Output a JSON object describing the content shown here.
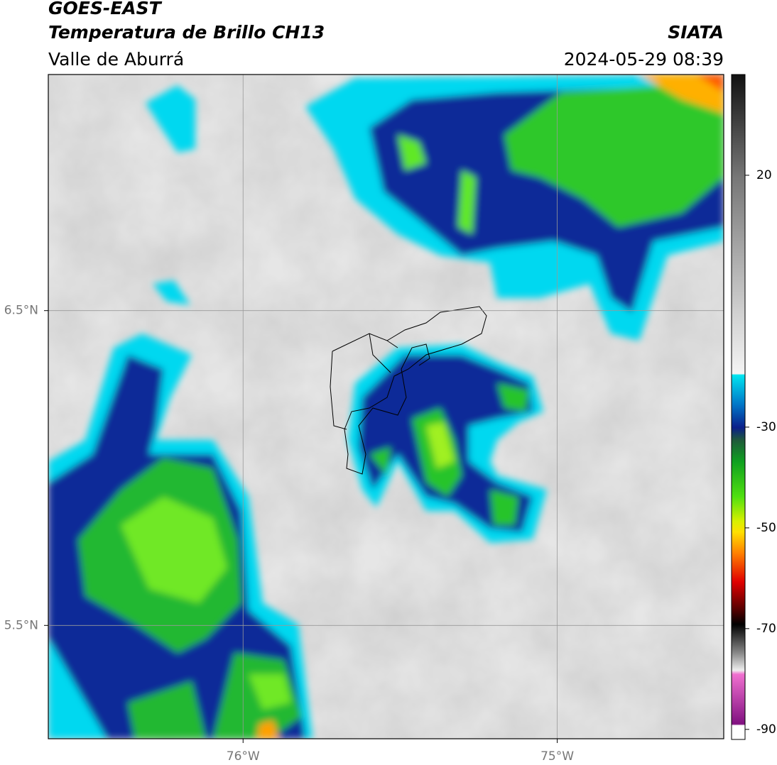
{
  "header": {
    "title": "GOES-EAST",
    "subtitle": "Temperatura de Brillo CH13",
    "region": "Valle de Aburrá",
    "source": "SIATA",
    "timestamp": "2024-05-29 08:39"
  },
  "map": {
    "xlim": [
      -76.62,
      -74.47
    ],
    "ylim": [
      5.14,
      7.25
    ],
    "xticks": [
      {
        "value": -76,
        "label": "76°W"
      },
      {
        "value": -75,
        "label": "75°W"
      }
    ],
    "yticks": [
      {
        "value": 6.5,
        "label": "6.5°N"
      },
      {
        "value": 5.5,
        "label": "5.5°N"
      }
    ],
    "grid": true
  },
  "colorbar": {
    "lim": [
      -92,
      40
    ],
    "ticks": [
      20,
      -30,
      -50,
      -70,
      -90
    ]
  }
}
